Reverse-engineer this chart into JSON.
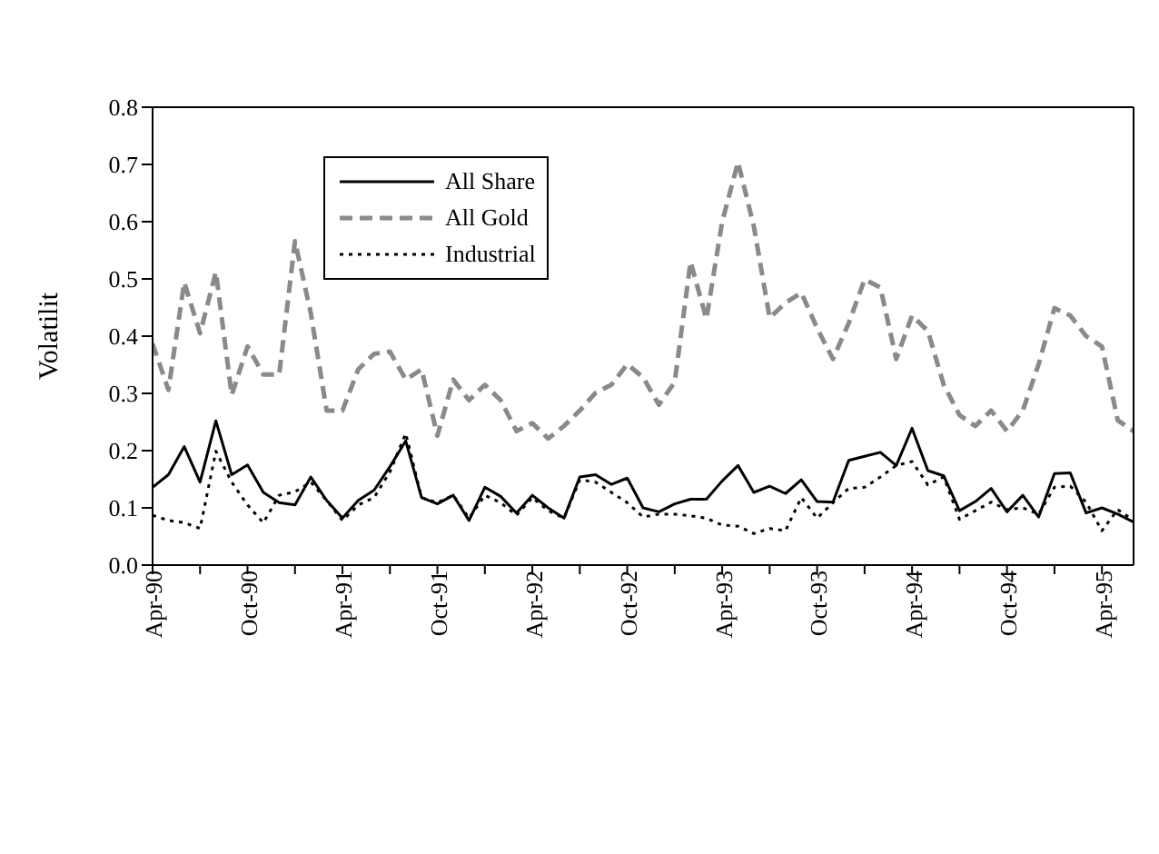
{
  "chart_data": {
    "type": "line",
    "ylabel": "Volatilit",
    "x": [
      "1990-04",
      "1990-05",
      "1990-06",
      "1990-07",
      "1990-08",
      "1990-09",
      "1990-10",
      "1990-11",
      "1990-12",
      "1991-01",
      "1991-02",
      "1991-03",
      "1991-04",
      "1991-05",
      "1991-06",
      "1991-07",
      "1991-08",
      "1991-09",
      "1991-10",
      "1991-11",
      "1991-12",
      "1992-01",
      "1992-02",
      "1992-03",
      "1992-04",
      "1992-05",
      "1992-06",
      "1992-07",
      "1992-08",
      "1992-09",
      "1992-10",
      "1992-11",
      "1992-12",
      "1993-01",
      "1993-02",
      "1993-03",
      "1993-04",
      "1993-05",
      "1993-06",
      "1993-07",
      "1993-08",
      "1993-09",
      "1993-10",
      "1993-11",
      "1993-12",
      "1994-01",
      "1994-02",
      "1994-03",
      "1994-04",
      "1994-05",
      "1994-06",
      "1994-07",
      "1994-08",
      "1994-09",
      "1994-10",
      "1994-11",
      "1994-12",
      "1995-01",
      "1995-02",
      "1995-03",
      "1995-04",
      "1995-05",
      "1995-06"
    ],
    "series": [
      {
        "name": "All Share",
        "color": "#000000",
        "line_style": "solid",
        "values": [
          0.136,
          0.158,
          0.207,
          0.145,
          0.252,
          0.158,
          0.175,
          0.127,
          0.109,
          0.105,
          0.154,
          0.113,
          0.082,
          0.113,
          0.131,
          0.172,
          0.217,
          0.118,
          0.107,
          0.122,
          0.078,
          0.136,
          0.12,
          0.091,
          0.122,
          0.1,
          0.082,
          0.154,
          0.158,
          0.141,
          0.152,
          0.1,
          0.093,
          0.107,
          0.115,
          0.115,
          0.147,
          0.174,
          0.127,
          0.138,
          0.125,
          0.149,
          0.111,
          0.11,
          0.183,
          0.19,
          0.197,
          0.174,
          0.239,
          0.165,
          0.156,
          0.095,
          0.111,
          0.134,
          0.093,
          0.122,
          0.084,
          0.16,
          0.161,
          0.091,
          0.1,
          0.089,
          0.075
        ]
      },
      {
        "name": "All Gold",
        "color": "#8a8a8a",
        "line_style": "dashed",
        "values": [
          0.387,
          0.306,
          0.494,
          0.405,
          0.512,
          0.297,
          0.382,
          0.333,
          0.333,
          0.566,
          0.44,
          0.27,
          0.27,
          0.342,
          0.369,
          0.373,
          0.324,
          0.342,
          0.226,
          0.324,
          0.288,
          0.315,
          0.288,
          0.234,
          0.248,
          0.221,
          0.243,
          0.27,
          0.301,
          0.315,
          0.351,
          0.328,
          0.28,
          0.32,
          0.53,
          0.43,
          0.6,
          0.704,
          0.592,
          0.432,
          0.458,
          0.476,
          0.414,
          0.36,
          0.423,
          0.499,
          0.485,
          0.36,
          0.436,
          0.409,
          0.315,
          0.262,
          0.243,
          0.27,
          0.234,
          0.27,
          0.351,
          0.449,
          0.436,
          0.4,
          0.382,
          0.253,
          0.234
        ]
      },
      {
        "name": "Industrial",
        "color": "#000000",
        "line_style": "dotted",
        "values": [
          0.087,
          0.078,
          0.074,
          0.064,
          0.199,
          0.145,
          0.105,
          0.074,
          0.122,
          0.128,
          0.145,
          0.113,
          0.078,
          0.105,
          0.118,
          0.163,
          0.23,
          0.118,
          0.109,
          0.122,
          0.082,
          0.122,
          0.109,
          0.087,
          0.118,
          0.095,
          0.082,
          0.149,
          0.145,
          0.127,
          0.109,
          0.084,
          0.089,
          0.089,
          0.086,
          0.082,
          0.07,
          0.068,
          0.055,
          0.064,
          0.06,
          0.118,
          0.082,
          0.109,
          0.134,
          0.136,
          0.154,
          0.174,
          0.181,
          0.14,
          0.154,
          0.08,
          0.095,
          0.11,
          0.097,
          0.1,
          0.089,
          0.136,
          0.138,
          0.11,
          0.06,
          0.097,
          0.078
        ]
      }
    ],
    "xlim": [
      "1990-04",
      "1995-06"
    ],
    "xticks": [
      {
        "value": "1990-04",
        "label": "Apr-90"
      },
      {
        "value": "1990-07",
        "label": null
      },
      {
        "value": "1990-10",
        "label": "Oct-90"
      },
      {
        "value": "1991-01",
        "label": null
      },
      {
        "value": "1991-04",
        "label": "Apr-91"
      },
      {
        "value": "1991-07",
        "label": null
      },
      {
        "value": "1991-10",
        "label": "Oct-91"
      },
      {
        "value": "1992-01",
        "label": null
      },
      {
        "value": "1992-04",
        "label": "Apr-92"
      },
      {
        "value": "1992-07",
        "label": null
      },
      {
        "value": "1992-10",
        "label": "Oct-92"
      },
      {
        "value": "1993-01",
        "label": null
      },
      {
        "value": "1993-04",
        "label": "Apr-93"
      },
      {
        "value": "1993-07",
        "label": null
      },
      {
        "value": "1993-10",
        "label": "Oct-93"
      },
      {
        "value": "1994-01",
        "label": null
      },
      {
        "value": "1994-04",
        "label": "Apr-94"
      },
      {
        "value": "1994-07",
        "label": null
      },
      {
        "value": "1994-10",
        "label": "Oct-94"
      },
      {
        "value": "1995-01",
        "label": null
      },
      {
        "value": "1995-04",
        "label": "Apr-95"
      }
    ],
    "ylim": [
      0,
      0.8
    ],
    "yticks": [
      {
        "value": 0,
        "label": "0.0"
      },
      {
        "value": 0.1,
        "label": "0.1"
      },
      {
        "value": 0.2,
        "label": "0.2"
      },
      {
        "value": 0.3,
        "label": "0.3"
      },
      {
        "value": 0.4,
        "label": "0.4"
      },
      {
        "value": 0.5,
        "label": "0.5"
      },
      {
        "value": 0.6,
        "label": "0.6"
      },
      {
        "value": 0.7,
        "label": "0.7"
      },
      {
        "value": 0.8,
        "label": "0.8"
      }
    ],
    "legend": "top left",
    "grid": false,
    "marker": "none"
  }
}
